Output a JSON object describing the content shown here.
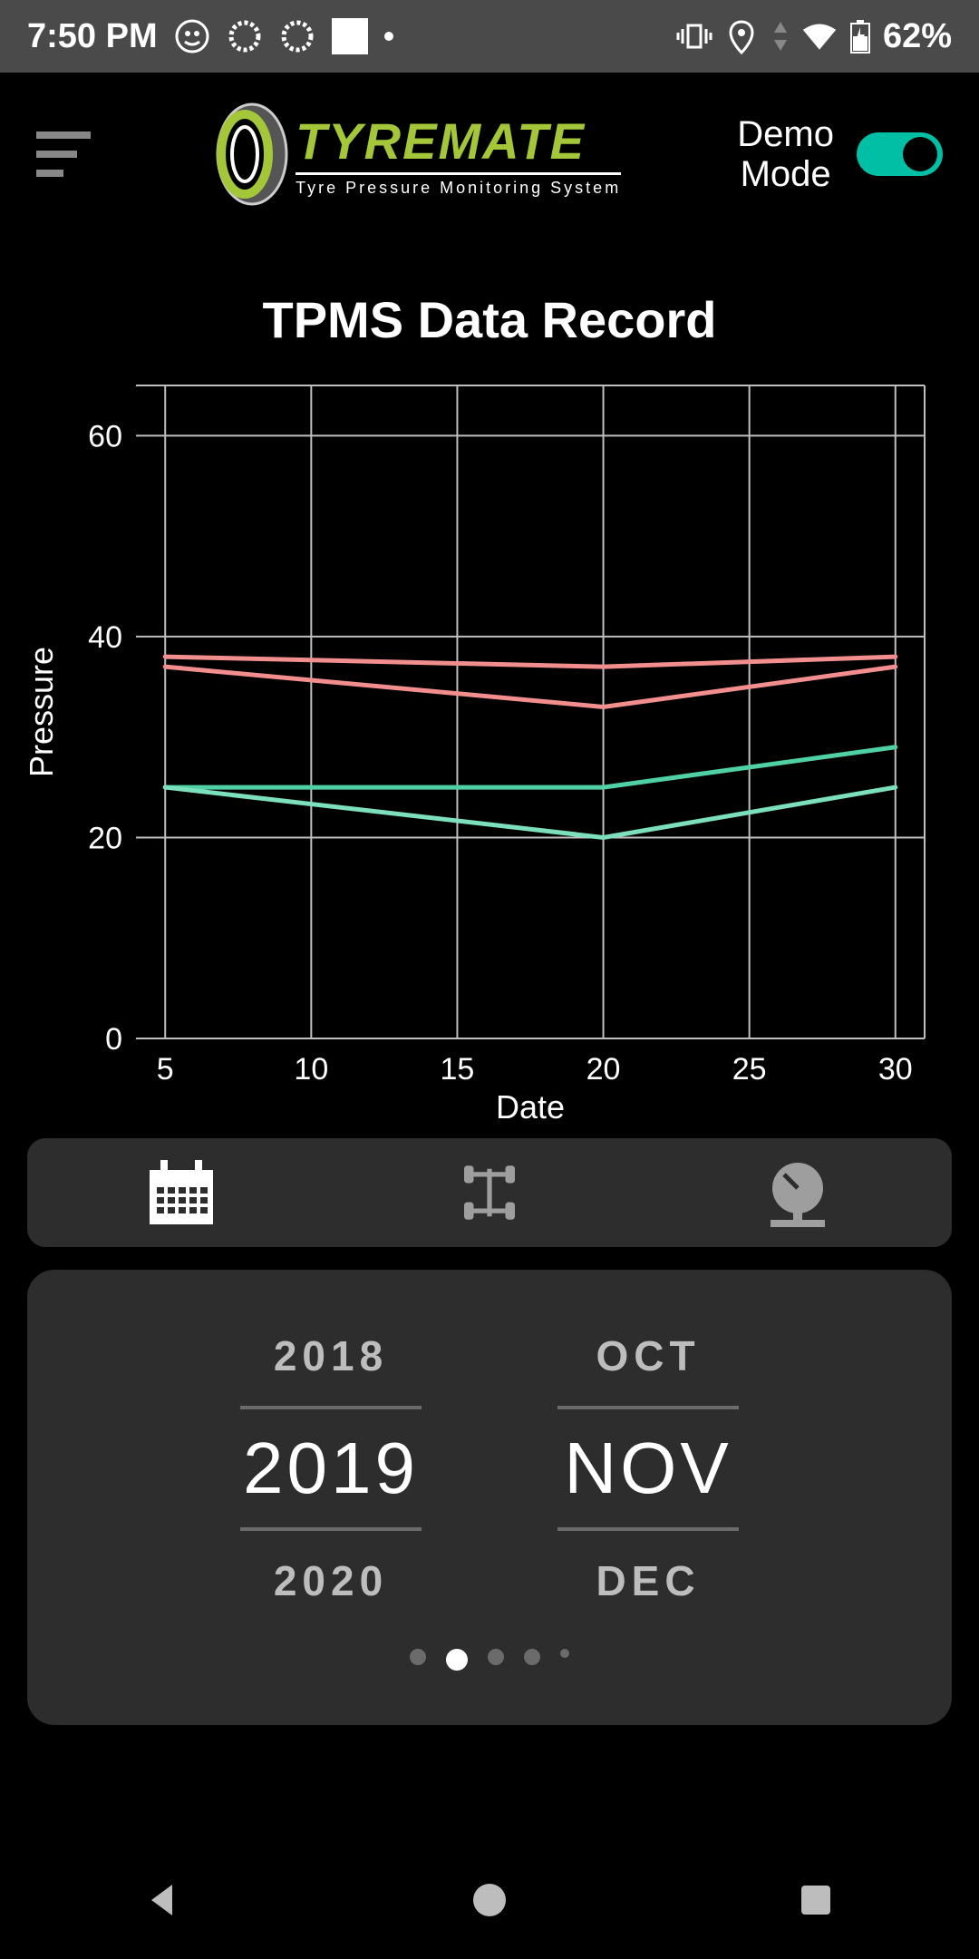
{
  "status": {
    "time": "7:50 PM",
    "battery": "62%"
  },
  "header": {
    "logo_main": "TYREMATE",
    "logo_sub": "Tyre Pressure Monitoring System",
    "demo_line1": "Demo",
    "demo_line2": "Mode",
    "toggle_on": true,
    "toggle_accent": "#00bfa5"
  },
  "title": "TPMS Data Record",
  "chart": {
    "type": "line",
    "ylabel": "Pressure",
    "xlabel": "Date",
    "ylim": [
      0,
      65
    ],
    "yticks": [
      0,
      20,
      40,
      60
    ],
    "xlim": [
      4,
      31
    ],
    "xticks": [
      5,
      10,
      15,
      20,
      25,
      30
    ],
    "background_color": "#000000",
    "grid_color": "#bfbfbf",
    "axis_label_fontsize": 36,
    "tick_fontsize": 34,
    "line_width": 5,
    "series": [
      {
        "name": "s1",
        "color": "#f28e8e",
        "x": [
          5,
          20,
          30
        ],
        "y": [
          38,
          37,
          38
        ]
      },
      {
        "name": "s2",
        "color": "#f28e8e",
        "x": [
          5,
          20,
          30
        ],
        "y": [
          37,
          33,
          37
        ]
      },
      {
        "name": "s3",
        "color": "#4fd1a5",
        "x": [
          5,
          20,
          30
        ],
        "y": [
          25,
          25,
          29
        ]
      },
      {
        "name": "s4",
        "color": "#7de0bd",
        "x": [
          5,
          20,
          30
        ],
        "y": [
          25,
          20,
          25
        ]
      }
    ]
  },
  "tabs": {
    "active_color": "#ffffff",
    "inactive_color": "#9e9e9e",
    "items": [
      {
        "name": "calendar",
        "active": true
      },
      {
        "name": "chassis",
        "active": false
      },
      {
        "name": "gauge",
        "active": false
      }
    ]
  },
  "picker": {
    "year": {
      "prev": "2018",
      "selected": "2019",
      "next": "2020"
    },
    "month": {
      "prev": "OCT",
      "selected": "NOV",
      "next": "DEC"
    },
    "selected_color": "#ffffff",
    "dim_color": "#bdbdbd",
    "divider_color": "#6b6b6b"
  },
  "page_dots": {
    "count": 5,
    "active_index": 1
  }
}
